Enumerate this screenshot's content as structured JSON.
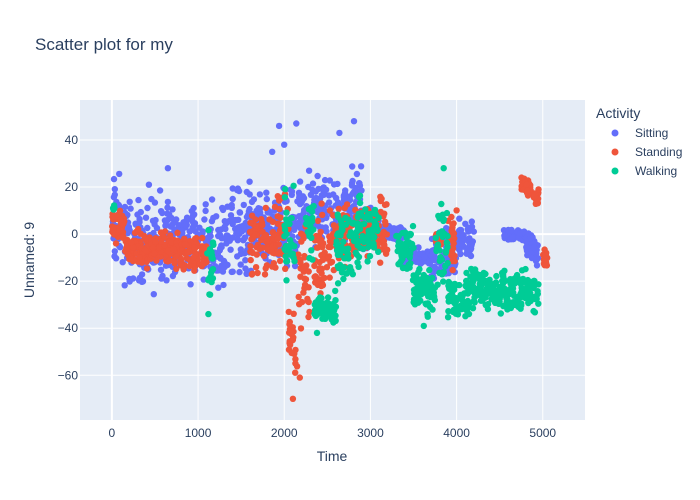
{
  "chart_data": {
    "type": "scatter",
    "title": "Scatter plot for my",
    "xlabel": "Time",
    "ylabel": "Unnamed: 9",
    "xlim": [
      -370,
      5490
    ],
    "ylim": [
      -79,
      57
    ],
    "xticks": [
      0,
      1000,
      2000,
      3000,
      4000,
      5000
    ],
    "yticks": [
      -60,
      -40,
      -20,
      0,
      20,
      40
    ],
    "grid": true,
    "legend": {
      "title": "Activity",
      "placement": "right"
    },
    "series": [
      {
        "name": "Sitting",
        "color": "#636efa",
        "segments": [
          [
            0,
            120,
            -25,
            33
          ],
          [
            120,
            420,
            -28,
            22
          ],
          [
            420,
            700,
            -31,
            24
          ],
          [
            700,
            1100,
            -25,
            21
          ],
          [
            1100,
            1350,
            -26,
            20
          ],
          [
            1350,
            1650,
            -23,
            28
          ],
          [
            1650,
            1900,
            -18,
            22
          ],
          [
            1900,
            2150,
            -20,
            26
          ],
          [
            2150,
            2450,
            -14,
            30
          ],
          [
            2450,
            2750,
            -12,
            28
          ],
          [
            2750,
            2900,
            -8,
            36
          ],
          [
            2900,
            3100,
            -12,
            18
          ],
          [
            3100,
            3400,
            -4,
            5
          ],
          [
            3400,
            3700,
            -15,
            -5
          ],
          [
            3700,
            4000,
            -23,
            6
          ],
          [
            4000,
            4200,
            -14,
            10
          ],
          [
            4550,
            4800,
            -4,
            4
          ],
          [
            4800,
            4950,
            -16,
            3
          ]
        ],
        "outliers": [
          [
            1940,
            46
          ],
          [
            2140,
            47
          ],
          [
            2810,
            48
          ],
          [
            2640,
            43
          ],
          [
            1860,
            35
          ],
          [
            2000,
            38
          ],
          [
            430,
            21
          ],
          [
            650,
            28
          ]
        ]
      },
      {
        "name": "Standing",
        "color": "#ef553b",
        "segments": [
          [
            0,
            150,
            -8,
            15
          ],
          [
            150,
            450,
            -17,
            5
          ],
          [
            450,
            800,
            -16,
            3
          ],
          [
            800,
            1100,
            -20,
            4
          ],
          [
            1600,
            1900,
            -22,
            15
          ],
          [
            1900,
            2050,
            -24,
            22
          ],
          [
            2050,
            2150,
            -68,
            -25
          ],
          [
            2150,
            2300,
            -50,
            20
          ],
          [
            2350,
            2600,
            -33,
            20
          ],
          [
            2600,
            2800,
            -20,
            18
          ],
          [
            2800,
            3100,
            -13,
            18
          ],
          [
            3100,
            3200,
            -18,
            22
          ],
          [
            3750,
            3820,
            -10,
            5
          ],
          [
            3900,
            4000,
            -28,
            19
          ],
          [
            4750,
            4860,
            15,
            25
          ],
          [
            4890,
            4960,
            10,
            20
          ],
          [
            5000,
            5060,
            -15,
            -6
          ]
        ],
        "outliers": [
          [
            2100,
            -70
          ],
          [
            2180,
            -61
          ],
          [
            2130,
            -55
          ],
          [
            4950,
            19
          ]
        ]
      },
      {
        "name": "Walking",
        "color": "#00cc96",
        "segments": [
          [
            0,
            30,
            9,
            13
          ],
          [
            1100,
            1180,
            -33,
            7
          ],
          [
            2000,
            2120,
            -25,
            25
          ],
          [
            2250,
            2350,
            -18,
            20
          ],
          [
            2350,
            2600,
            -42,
            -22
          ],
          [
            2600,
            2800,
            -25,
            15
          ],
          [
            2800,
            3000,
            -20,
            22
          ],
          [
            3000,
            3100,
            -14,
            16
          ],
          [
            3300,
            3500,
            -25,
            12
          ],
          [
            3500,
            3750,
            -37,
            -10
          ],
          [
            3750,
            3900,
            -42,
            28
          ],
          [
            3900,
            4150,
            -40,
            -14
          ],
          [
            4150,
            4400,
            -37,
            -10
          ],
          [
            4400,
            4650,
            -36,
            -12
          ],
          [
            4650,
            4950,
            -37,
            -13
          ]
        ],
        "outliers": [
          [
            2380,
            -42
          ],
          [
            3850,
            28
          ],
          [
            1120,
            -34
          ],
          [
            3620,
            -39
          ]
        ]
      }
    ]
  }
}
